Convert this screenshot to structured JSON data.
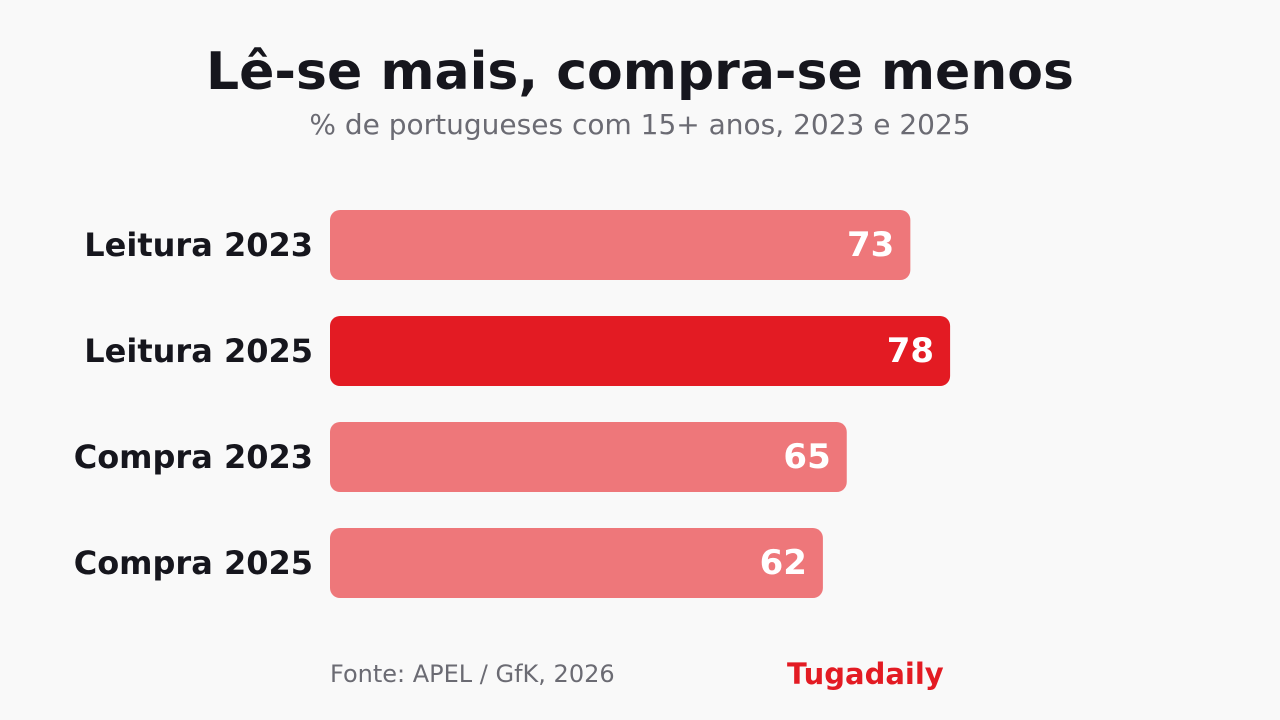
{
  "chart_data": {
    "type": "bar",
    "orientation": "horizontal",
    "title": "Lê-se mais, compra-se menos",
    "subtitle": "% de portugueses com 15+ anos, 2023 e 2025",
    "categories": [
      "Leitura 2023",
      "Leitura 2025",
      "Compra 2023",
      "Compra 2025"
    ],
    "values": [
      73,
      78,
      65,
      62
    ],
    "highlight_index": 1,
    "xlim": [
      0,
      100
    ],
    "grid": false,
    "legend": "none",
    "colors": {
      "bar": "#ee777a",
      "highlight": "#e31b23",
      "value_text": "#ffffff",
      "label_text": "#16161d"
    }
  },
  "footer": {
    "source": "Fonte: APEL / GfK, 2026",
    "brand": "Tugadaily"
  },
  "colors": {
    "background": "#f9f9f9",
    "brand": "#e31b23",
    "muted": "#6b6b73"
  }
}
